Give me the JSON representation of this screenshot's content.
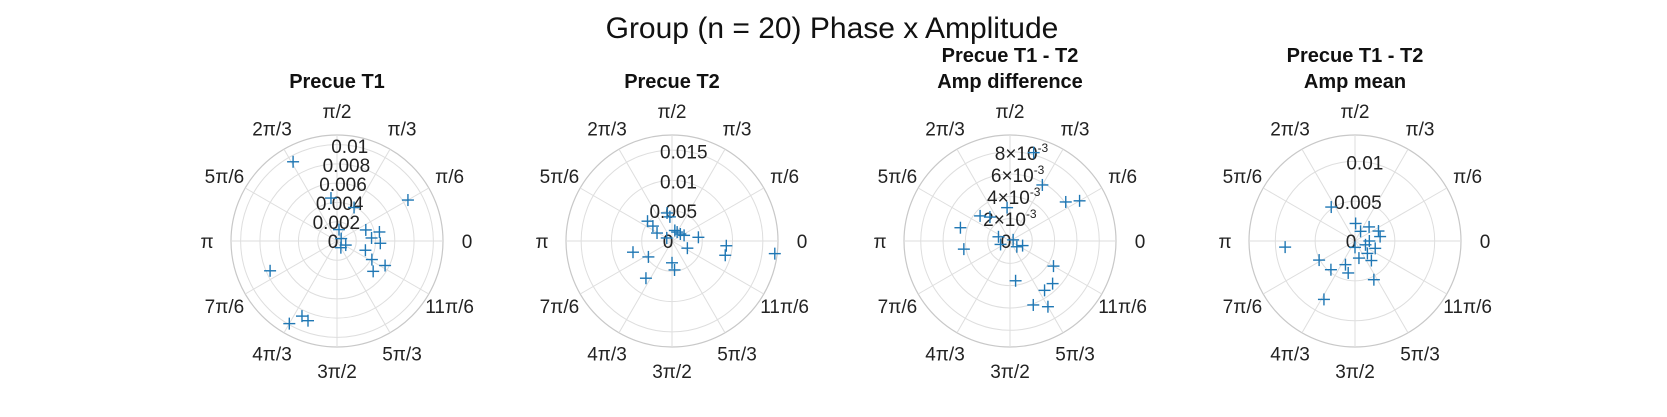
{
  "suptitle": "Group (n = 20) Phase x Amplitude",
  "theta_labels": [
    "0",
    "π/6",
    "π/3",
    "π/2",
    "2π/3",
    "5π/6",
    "π",
    "7π/6",
    "4π/3",
    "3π/2",
    "5π/3",
    "11π/6"
  ],
  "colors": {
    "marker": "#1f77b4",
    "grid": "#dedede",
    "text": "#111111"
  },
  "chart_data": [
    {
      "type": "scatter",
      "coordinate_system": "polar",
      "marker": "+",
      "title": [
        "Precue T1"
      ],
      "rlim": [
        0,
        0.011
      ],
      "r_ticks": [
        0,
        0.002,
        0.004,
        0.006,
        0.008,
        0.01
      ],
      "r_tick_labels": [
        [
          "0"
        ],
        [
          "0.002"
        ],
        [
          "0.004"
        ],
        [
          "0.006"
        ],
        [
          "0.008"
        ],
        [
          "0.01"
        ]
      ],
      "points": [
        {
          "theta_deg": 119,
          "r": 0.0094
        },
        {
          "theta_deg": 30,
          "r": 0.0085
        },
        {
          "theta_deg": 98,
          "r": 0.0045
        },
        {
          "theta_deg": 63,
          "r": 0.0039
        },
        {
          "theta_deg": 21,
          "r": 0.0032
        },
        {
          "theta_deg": 12,
          "r": 0.0045
        },
        {
          "theta_deg": 5,
          "r": 0.0036
        },
        {
          "theta_deg": 357,
          "r": 0.0045
        },
        {
          "theta_deg": 342,
          "r": 0.0031
        },
        {
          "theta_deg": 332,
          "r": 0.0041
        },
        {
          "theta_deg": 333,
          "r": 0.0056
        },
        {
          "theta_deg": 320,
          "r": 0.0049
        },
        {
          "theta_deg": 204,
          "r": 0.0076
        },
        {
          "theta_deg": 240,
          "r": 0.0099
        },
        {
          "theta_deg": 245,
          "r": 0.0086
        },
        {
          "theta_deg": 250,
          "r": 0.0088
        },
        {
          "theta_deg": 335,
          "r": 0.001
        },
        {
          "theta_deg": 300,
          "r": 0.0008
        },
        {
          "theta_deg": 80,
          "r": 0.0012
        },
        {
          "theta_deg": 30,
          "r": 0.0005
        }
      ]
    },
    {
      "type": "scatter",
      "coordinate_system": "polar",
      "marker": "+",
      "title": [
        "Precue T2"
      ],
      "rlim": [
        0,
        0.0175
      ],
      "r_ticks": [
        0,
        0.005,
        0.01,
        0.015
      ],
      "r_tick_labels": [
        [
          "0"
        ],
        [
          "0.005"
        ],
        [
          "0.01"
        ],
        [
          "0.015"
        ]
      ],
      "points": [
        {
          "theta_deg": 141,
          "r": 0.0052
        },
        {
          "theta_deg": 100,
          "r": 0.0047
        },
        {
          "theta_deg": 142,
          "r": 0.004
        },
        {
          "theta_deg": 152,
          "r": 0.0028
        },
        {
          "theta_deg": 196,
          "r": 0.0067
        },
        {
          "theta_deg": 235,
          "r": 0.0075
        },
        {
          "theta_deg": 214,
          "r": 0.0047
        },
        {
          "theta_deg": 275,
          "r": 0.0048
        },
        {
          "theta_deg": 270,
          "r": 0.0036
        },
        {
          "theta_deg": 345,
          "r": 0.0091
        },
        {
          "theta_deg": 8,
          "r": 0.0044
        },
        {
          "theta_deg": 355,
          "r": 0.009
        },
        {
          "theta_deg": 25,
          "r": 0.0022
        },
        {
          "theta_deg": 40,
          "r": 0.0018
        },
        {
          "theta_deg": 75,
          "r": 0.0018
        },
        {
          "theta_deg": 60,
          "r": 0.0017
        },
        {
          "theta_deg": 335,
          "r": 0.0028
        },
        {
          "theta_deg": 150,
          "r": 0.001
        },
        {
          "theta_deg": 95,
          "r": 0.004
        },
        {
          "theta_deg": 353,
          "r": 0.0171
        }
      ]
    },
    {
      "type": "scatter",
      "coordinate_system": "polar",
      "marker": "+",
      "title": [
        "Precue T1 - T2",
        "Amp difference"
      ],
      "rlim": [
        0,
        0.0095
      ],
      "r_ticks": [
        0,
        0.002,
        0.004,
        0.006,
        0.008
      ],
      "r_tick_labels": [
        [
          "0"
        ],
        [
          "2",
          "×10",
          "-3"
        ],
        [
          "4",
          "×10",
          "-3"
        ],
        [
          "6",
          "×10",
          "-3"
        ],
        [
          "8",
          "×10",
          "-3"
        ]
      ],
      "points": [
        {
          "theta_deg": 75,
          "r": 0.0082
        },
        {
          "theta_deg": 35,
          "r": 0.0061
        },
        {
          "theta_deg": 30,
          "r": 0.0072
        },
        {
          "theta_deg": 165,
          "r": 0.0046
        },
        {
          "theta_deg": 190,
          "r": 0.0042
        },
        {
          "theta_deg": 130,
          "r": 0.0028
        },
        {
          "theta_deg": 160,
          "r": 0.0011
        },
        {
          "theta_deg": 330,
          "r": 0.0045
        },
        {
          "theta_deg": 315,
          "r": 0.0054
        },
        {
          "theta_deg": 305,
          "r": 0.0054
        },
        {
          "theta_deg": 290,
          "r": 0.0061
        },
        {
          "theta_deg": 278,
          "r": 0.0036
        },
        {
          "theta_deg": 340,
          "r": 0.0012
        },
        {
          "theta_deg": 200,
          "r": 0.0009
        },
        {
          "theta_deg": 20,
          "r": 0.0003
        },
        {
          "theta_deg": 320,
          "r": 0.0008
        },
        {
          "theta_deg": 95,
          "r": 0.003
        },
        {
          "theta_deg": 140,
          "r": 0.0035
        },
        {
          "theta_deg": 60,
          "r": 0.0058
        },
        {
          "theta_deg": 300,
          "r": 0.0068
        }
      ]
    },
    {
      "type": "scatter",
      "coordinate_system": "polar",
      "marker": "+",
      "title": [
        "Precue T1 - T2",
        "Amp mean"
      ],
      "rlim": [
        0,
        0.0133
      ],
      "r_ticks": [
        0,
        0.005,
        0.01
      ],
      "r_tick_labels": [
        [
          "0"
        ],
        [
          "0.005"
        ],
        [
          "0.01"
        ]
      ],
      "points": [
        {
          "theta_deg": 125,
          "r": 0.0052
        },
        {
          "theta_deg": 185,
          "r": 0.0088
        },
        {
          "theta_deg": 208,
          "r": 0.0051
        },
        {
          "theta_deg": 230,
          "r": 0.0047
        },
        {
          "theta_deg": 242,
          "r": 0.0083
        },
        {
          "theta_deg": 248,
          "r": 0.0032
        },
        {
          "theta_deg": 258,
          "r": 0.0041
        },
        {
          "theta_deg": 296,
          "r": 0.0054
        },
        {
          "theta_deg": 283,
          "r": 0.0022
        },
        {
          "theta_deg": 310,
          "r": 0.0032
        },
        {
          "theta_deg": 315,
          "r": 0.0022
        },
        {
          "theta_deg": 340,
          "r": 0.0027
        },
        {
          "theta_deg": 340,
          "r": 0.0014
        },
        {
          "theta_deg": 10,
          "r": 0.0032
        },
        {
          "theta_deg": 23,
          "r": 0.0032
        },
        {
          "theta_deg": 45,
          "r": 0.0025
        },
        {
          "theta_deg": 88,
          "r": 0.0022
        },
        {
          "theta_deg": 60,
          "r": 0.0014
        },
        {
          "theta_deg": 0,
          "r": 0.0018
        },
        {
          "theta_deg": 270,
          "r": 0.0008
        }
      ]
    }
  ]
}
